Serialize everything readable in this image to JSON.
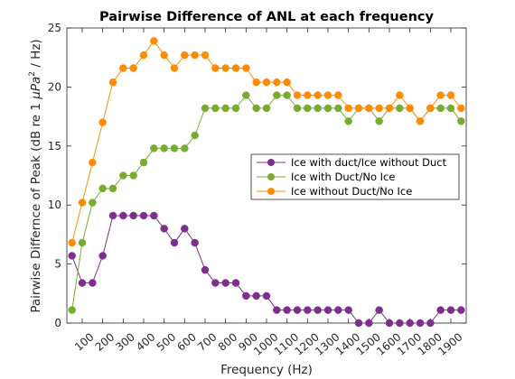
{
  "chart_data": {
    "type": "line",
    "title": "Pairwise Difference of ANL at each frequency",
    "xlabel": "Frequency (Hz)",
    "ylabel_prefix": "Pairwise Differnce of Peak (dB re 1 ",
    "ylabel_unit": "μPa",
    "ylabel_sup": "2",
    "ylabel_suffix": " / Hz)",
    "xlim": [
      25,
      1975
    ],
    "ylim": [
      0,
      25
    ],
    "xticks": [
      100,
      200,
      300,
      400,
      500,
      600,
      700,
      800,
      900,
      1000,
      1100,
      1200,
      1300,
      1400,
      1500,
      1600,
      1700,
      1800,
      1900
    ],
    "yticks": [
      0,
      5,
      10,
      15,
      20,
      25
    ],
    "grid": false,
    "legend_position": "center-right",
    "x": [
      50,
      100,
      150,
      200,
      250,
      300,
      350,
      400,
      450,
      500,
      550,
      600,
      650,
      700,
      750,
      800,
      850,
      900,
      950,
      1000,
      1050,
      1100,
      1150,
      1200,
      1250,
      1300,
      1350,
      1400,
      1450,
      1500,
      1550,
      1600,
      1650,
      1700,
      1750,
      1800,
      1850,
      1900,
      1950
    ],
    "series": [
      {
        "name": "Ice with duct/Ice without Duct",
        "color": "#7e2f8e",
        "values": [
          5.7,
          3.4,
          3.4,
          5.7,
          9.1,
          9.1,
          9.1,
          9.1,
          9.1,
          8.0,
          6.8,
          8.0,
          6.8,
          4.5,
          3.4,
          3.4,
          3.4,
          2.3,
          2.3,
          2.3,
          1.1,
          1.1,
          1.1,
          1.1,
          1.1,
          1.1,
          1.1,
          1.1,
          0,
          0,
          1.1,
          0,
          0,
          0,
          0,
          0,
          1.1,
          1.1,
          1.1
        ]
      },
      {
        "name": "Ice with Duct/No Ice",
        "color": "#77ac30",
        "values": [
          1.1,
          6.8,
          10.2,
          11.4,
          11.4,
          12.5,
          12.5,
          13.6,
          14.8,
          14.8,
          14.8,
          14.8,
          15.9,
          18.2,
          18.2,
          18.2,
          18.2,
          19.3,
          18.2,
          18.2,
          19.3,
          19.3,
          18.2,
          18.2,
          18.2,
          18.2,
          18.2,
          17.1,
          18.2,
          18.2,
          17.1,
          18.2,
          18.2,
          18.2,
          17.1,
          18.2,
          18.2,
          18.2,
          17.1
        ]
      },
      {
        "name": "Ice without Duct/No Ice",
        "color": "#ff8c00",
        "values": [
          6.8,
          10.2,
          13.6,
          17.0,
          20.4,
          21.6,
          21.6,
          22.7,
          23.9,
          22.7,
          21.6,
          22.7,
          22.7,
          22.7,
          21.6,
          21.6,
          21.6,
          21.6,
          20.4,
          20.4,
          20.4,
          20.4,
          19.3,
          19.3,
          19.3,
          19.3,
          19.3,
          18.2,
          18.2,
          18.2,
          18.2,
          18.2,
          19.3,
          18.2,
          17.1,
          18.2,
          19.3,
          19.3,
          18.2
        ]
      }
    ]
  }
}
